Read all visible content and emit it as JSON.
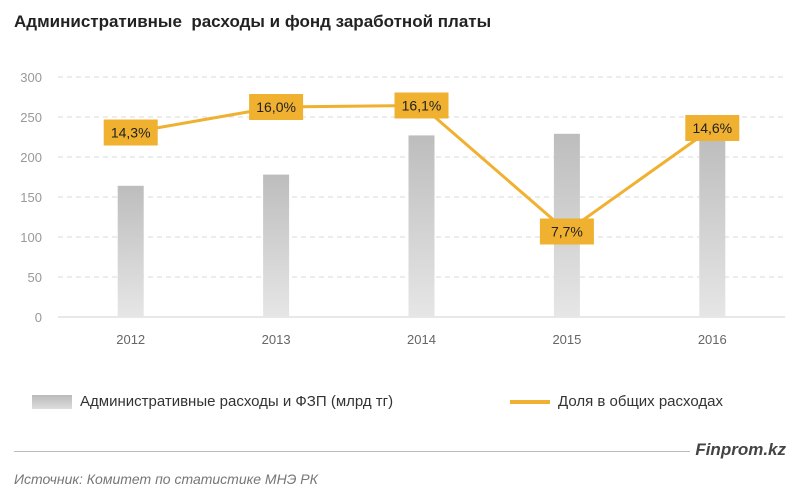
{
  "title": "Административные  расходы и фонд заработной платы",
  "chart_data": {
    "type": "bar+line",
    "title": "Административные  расходы и фонд заработной платы",
    "categories": [
      "2012",
      "2013",
      "2014",
      "2015",
      "2016"
    ],
    "ylim": [
      0,
      300
    ],
    "yticks": [
      0,
      50,
      100,
      150,
      200,
      250,
      300
    ],
    "grid": true,
    "legend_placement": "bottom",
    "series": [
      {
        "name": "Административные расходы и ФЗП (млрд тг)",
        "type": "bar",
        "values": [
          164,
          178,
          227,
          229,
          226
        ],
        "color": "#c8c8c8"
      },
      {
        "name": "Доля в общих расходах",
        "type": "line",
        "axis": "secondary",
        "values": [
          14.3,
          16.0,
          16.1,
          7.7,
          14.6
        ],
        "labels": [
          "14,3%",
          "16,0%",
          "16,1%",
          "7,7%",
          "14,6%"
        ],
        "color": "#f0b030",
        "ylim": [
          2,
          18
        ]
      }
    ]
  },
  "brand": "Finprom.kz",
  "source": "Источник:  Комитет по статистике МНЭ РК"
}
